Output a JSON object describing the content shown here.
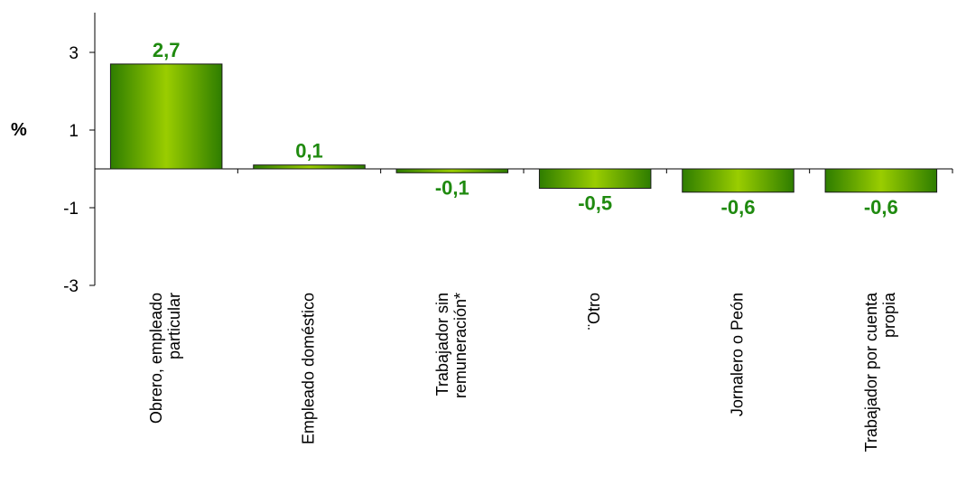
{
  "chart_data": {
    "type": "bar",
    "title": "",
    "xlabel": "",
    "ylabel": "%",
    "ylim": [
      -3,
      3
    ],
    "yticks": [
      "3",
      "1",
      "-1",
      "-3"
    ],
    "categories": [
      [
        "Obrero, empleado",
        "particular"
      ],
      [
        "Empleado doméstico"
      ],
      [
        "Trabajador sin",
        "remuneración*"
      ],
      [
        "¨Otro"
      ],
      [
        "Jornalero o Peón"
      ],
      [
        "Trabajador por cuenta",
        "propia"
      ]
    ],
    "values": [
      2.7,
      0.1,
      -0.1,
      -0.5,
      -0.6,
      -0.6
    ],
    "data_labels": [
      "2,7",
      "0,1",
      "-0,1",
      "-0,5",
      "-0,6",
      "-0,6"
    ],
    "grid": false,
    "legend": "none",
    "colors": {
      "bar_light": "#9ACD00",
      "bar_dark": "#2E7D00",
      "bar_stroke": "#1a1a1a",
      "label": "#1F8A0F"
    }
  }
}
